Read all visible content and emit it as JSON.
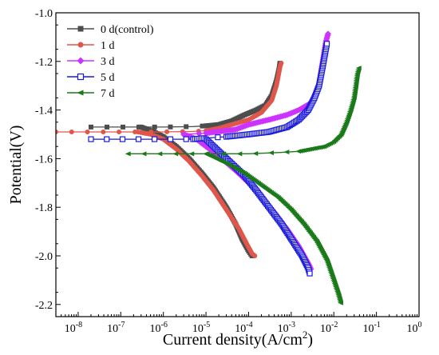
{
  "chart_data": {
    "type": "line",
    "xlabel": "Current density(A/cm",
    "xlabel_sup": "2",
    "xlabel_end": ")",
    "ylabel": "Potential(V)",
    "x_scale": "log",
    "xlim": [
      3e-09,
      1
    ],
    "ylim": [
      -2.25,
      -1.0
    ],
    "x_ticks": [
      {
        "base": "10",
        "exp": "-8",
        "value": 1e-08
      },
      {
        "base": "10",
        "exp": "-7",
        "value": 1e-07
      },
      {
        "base": "10",
        "exp": "-6",
        "value": 1e-06
      },
      {
        "base": "10",
        "exp": "-5",
        "value": 1e-05
      },
      {
        "base": "10",
        "exp": "-4",
        "value": 0.0001
      },
      {
        "base": "10",
        "exp": "-3",
        "value": 0.001
      },
      {
        "base": "10",
        "exp": "-2",
        "value": 0.01
      },
      {
        "base": "10",
        "exp": "-1",
        "value": 0.1
      },
      {
        "base": "10",
        "exp": "0",
        "value": 1
      }
    ],
    "y_ticks": [
      {
        "label": "-1.0",
        "value": -1.0
      },
      {
        "label": "-1.2",
        "value": -1.2
      },
      {
        "label": "-1.4",
        "value": -1.4
      },
      {
        "label": "-1.6",
        "value": -1.6
      },
      {
        "label": "-1.8",
        "value": -1.8
      },
      {
        "label": "-2.0",
        "value": -2.0
      },
      {
        "label": "-2.2",
        "value": -2.2
      }
    ],
    "legend_position": "top-left",
    "series": [
      {
        "name": "0 d(control)",
        "color": "#4d4d4d",
        "marker": "square",
        "anodic": [
          [
            2e-08,
            -1.47
          ],
          [
            2e-07,
            -1.47
          ],
          [
            1e-06,
            -1.47
          ],
          [
            5e-06,
            -1.468
          ],
          [
            1e-05,
            -1.465
          ],
          [
            2e-05,
            -1.46
          ],
          [
            4e-05,
            -1.445
          ],
          [
            8e-05,
            -1.42
          ],
          [
            0.00015,
            -1.4
          ],
          [
            0.00025,
            -1.38
          ],
          [
            0.00035,
            -1.34
          ],
          [
            0.00045,
            -1.28
          ],
          [
            0.00052,
            -1.23
          ],
          [
            0.00055,
            -1.2
          ]
        ],
        "cathodic": [
          [
            3e-07,
            -1.47
          ],
          [
            6e-07,
            -1.49
          ],
          [
            1e-06,
            -1.51
          ],
          [
            2e-06,
            -1.55
          ],
          [
            4e-06,
            -1.6
          ],
          [
            8e-06,
            -1.66
          ],
          [
            1.5e-05,
            -1.72
          ],
          [
            3e-05,
            -1.8
          ],
          [
            5e-05,
            -1.87
          ],
          [
            7e-05,
            -1.93
          ],
          [
            0.0001,
            -1.98
          ],
          [
            0.00012,
            -2.0
          ]
        ]
      },
      {
        "name": "1 d",
        "color": "#e0564a",
        "marker": "circle",
        "anodic": [
          [
            3e-09,
            -1.49
          ],
          [
            1e-07,
            -1.49
          ],
          [
            1e-06,
            -1.49
          ],
          [
            5e-06,
            -1.488
          ],
          [
            1e-05,
            -1.485
          ],
          [
            2e-05,
            -1.475
          ],
          [
            4e-05,
            -1.46
          ],
          [
            0.0001,
            -1.44
          ],
          [
            0.0002,
            -1.41
          ],
          [
            0.00035,
            -1.36
          ],
          [
            0.00045,
            -1.3
          ],
          [
            0.00055,
            -1.22
          ],
          [
            0.0006,
            -1.2
          ]
        ],
        "cathodic": [
          [
            2.5e-07,
            -1.49
          ],
          [
            5e-07,
            -1.5
          ],
          [
            1e-06,
            -1.52
          ],
          [
            2e-06,
            -1.56
          ],
          [
            4e-06,
            -1.61
          ],
          [
            8e-06,
            -1.67
          ],
          [
            1.5e-05,
            -1.73
          ],
          [
            3e-05,
            -1.81
          ],
          [
            6e-05,
            -1.89
          ],
          [
            9e-05,
            -1.95
          ],
          [
            0.00012,
            -1.99
          ],
          [
            0.00014,
            -2.0
          ]
        ]
      },
      {
        "name": "3 d",
        "color": "#cc33ff",
        "marker": "diamond",
        "anodic": [
          [
            3e-06,
            -1.5
          ],
          [
            1e-05,
            -1.495
          ],
          [
            5e-05,
            -1.48
          ],
          [
            0.0001,
            -1.46
          ],
          [
            0.0003,
            -1.44
          ],
          [
            0.0008,
            -1.42
          ],
          [
            0.0015,
            -1.4
          ],
          [
            0.003,
            -1.37
          ],
          [
            0.0045,
            -1.3
          ],
          [
            0.0055,
            -1.2
          ],
          [
            0.0065,
            -1.12
          ],
          [
            0.0075,
            -1.08
          ]
        ],
        "cathodic": [
          [
            3e-06,
            -1.5
          ],
          [
            6e-06,
            -1.52
          ],
          [
            1e-05,
            -1.55
          ],
          [
            2e-05,
            -1.59
          ],
          [
            5e-05,
            -1.65
          ],
          [
            0.0001,
            -1.7
          ],
          [
            0.0002,
            -1.76
          ],
          [
            0.0004,
            -1.82
          ],
          [
            0.0008,
            -1.89
          ],
          [
            0.0015,
            -1.96
          ],
          [
            0.0025,
            -2.03
          ],
          [
            0.003,
            -2.06
          ]
        ]
      },
      {
        "name": "5 d",
        "color": "#1a1ad9",
        "marker": "open-square",
        "anodic": [
          [
            2e-08,
            -1.52
          ],
          [
            1e-07,
            -1.52
          ],
          [
            1e-06,
            -1.52
          ],
          [
            5e-06,
            -1.52
          ],
          [
            1e-05,
            -1.515
          ],
          [
            3e-05,
            -1.51
          ],
          [
            0.0001,
            -1.5
          ],
          [
            0.0003,
            -1.49
          ],
          [
            0.0008,
            -1.47
          ],
          [
            0.0015,
            -1.44
          ],
          [
            0.0025,
            -1.4
          ],
          [
            0.0035,
            -1.35
          ],
          [
            0.0045,
            -1.3
          ],
          [
            0.0055,
            -1.22
          ],
          [
            0.0065,
            -1.15
          ],
          [
            0.007,
            -1.12
          ]
        ],
        "cathodic": [
          [
            1e-05,
            -1.52
          ],
          [
            2e-05,
            -1.57
          ],
          [
            4e-05,
            -1.62
          ],
          [
            8e-05,
            -1.67
          ],
          [
            0.00015,
            -1.73
          ],
          [
            0.0003,
            -1.8
          ],
          [
            0.0006,
            -1.87
          ],
          [
            0.001,
            -1.93
          ],
          [
            0.0018,
            -2.0
          ],
          [
            0.0025,
            -2.05
          ],
          [
            0.0028,
            -2.08
          ]
        ]
      },
      {
        "name": "7 d",
        "color": "#1a7a1a",
        "marker": "triangle-left",
        "anodic": [
          [
            1.5e-07,
            -1.58
          ],
          [
            1e-06,
            -1.58
          ],
          [
            1e-05,
            -1.58
          ],
          [
            0.0001,
            -1.58
          ],
          [
            0.0005,
            -1.575
          ],
          [
            0.0015,
            -1.57
          ],
          [
            0.003,
            -1.56
          ],
          [
            0.006,
            -1.55
          ],
          [
            0.01,
            -1.53
          ],
          [
            0.015,
            -1.5
          ],
          [
            0.02,
            -1.45
          ],
          [
            0.025,
            -1.4
          ],
          [
            0.03,
            -1.35
          ],
          [
            0.033,
            -1.3
          ],
          [
            0.036,
            -1.25
          ],
          [
            0.04,
            -1.22
          ]
        ],
        "cathodic": [
          [
            1e-05,
            -1.58
          ],
          [
            3e-05,
            -1.62
          ],
          [
            8e-05,
            -1.66
          ],
          [
            0.0002,
            -1.71
          ],
          [
            0.0005,
            -1.76
          ],
          [
            0.001,
            -1.81
          ],
          [
            0.002,
            -1.87
          ],
          [
            0.004,
            -1.94
          ],
          [
            0.007,
            -2.02
          ],
          [
            0.01,
            -2.1
          ],
          [
            0.013,
            -2.16
          ],
          [
            0.015,
            -2.2
          ]
        ]
      }
    ]
  }
}
